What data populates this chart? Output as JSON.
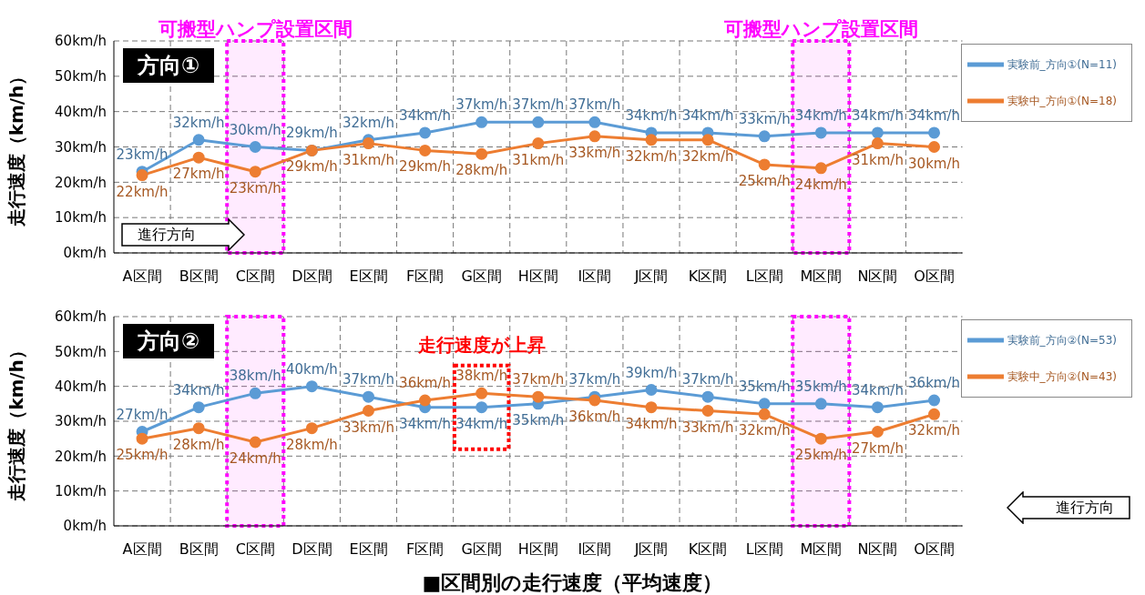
{
  "chart_data": [
    {
      "type": "line",
      "title": "方向①",
      "ylabel": "走行速度（km/h）",
      "categories": [
        "A区間",
        "B区間",
        "C区間",
        "D区間",
        "E区間",
        "F区間",
        "G区間",
        "H区間",
        "I区間",
        "J区間",
        "K区間",
        "L区間",
        "M区間",
        "N区間",
        "O区間"
      ],
      "series": [
        {
          "name": "実験前_方向①(N=11)",
          "color": "#5b9bd5",
          "values": [
            23,
            32,
            30,
            29,
            32,
            34,
            37,
            37,
            37,
            34,
            34,
            33,
            34,
            34,
            34
          ],
          "value_labels": [
            "23km/h",
            "32km/h",
            "30km/h",
            "29km/h",
            "32km/h",
            "34km/h",
            "37km/h",
            "37km/h",
            "37km/h",
            "34km/h",
            "34km/h",
            "33km/h",
            "34km/h",
            "34km/h",
            "34km/h"
          ]
        },
        {
          "name": "実験中_方向①(N=18)",
          "color": "#ed7d31",
          "values": [
            22,
            27,
            23,
            29,
            31,
            29,
            28,
            31,
            33,
            32,
            32,
            25,
            24,
            31,
            30
          ],
          "value_labels": [
            "22km/h",
            "27km/h",
            "23km/h",
            "29km/h",
            "31km/h",
            "29km/h",
            "28km/h",
            "31km/h",
            "33km/h",
            "32km/h",
            "32km/h",
            "25km/h",
            "24km/h",
            "31km/h",
            "30km/h"
          ]
        }
      ],
      "ylim": [
        0,
        60
      ],
      "yticks": [
        {
          "value": 0,
          "label": "0km/h"
        },
        {
          "value": 10,
          "label": "10km/h"
        },
        {
          "value": 20,
          "label": "20km/h"
        },
        {
          "value": 30,
          "label": "30km/h"
        },
        {
          "value": 40,
          "label": "40km/h"
        },
        {
          "value": 50,
          "label": "50km/h"
        },
        {
          "value": 60,
          "label": "60km/h"
        }
      ],
      "bands": [
        {
          "axis": "x",
          "from": "C区間",
          "to": "C区間",
          "label": "可搬型ハンプ設置区間",
          "color": "#ff00ff"
        },
        {
          "axis": "x",
          "from": "M区間",
          "to": "M区間",
          "label": "可搬型ハンプ設置区間",
          "color": "#ff00ff"
        }
      ],
      "annotations": [
        "進行方向"
      ],
      "grid": true,
      "legend": "top right",
      "marker": "circle",
      "line_style": "solid"
    },
    {
      "type": "line",
      "title": "方向②",
      "ylabel": "走行速度（km/h）",
      "categories": [
        "A区間",
        "B区間",
        "C区間",
        "D区間",
        "E区間",
        "F区間",
        "G区間",
        "H区間",
        "I区間",
        "J区間",
        "K区間",
        "L区間",
        "M区間",
        "N区間",
        "O区間"
      ],
      "series": [
        {
          "name": "実験前_方向②(N=53)",
          "color": "#5b9bd5",
          "values": [
            27,
            34,
            38,
            40,
            37,
            34,
            34,
            35,
            37,
            39,
            37,
            35,
            35,
            34,
            36
          ],
          "value_labels": [
            "27km/h",
            "34km/h",
            "38km/h",
            "40km/h",
            "37km/h",
            "34km/h",
            "34km/h",
            "35km/h",
            "37km/h",
            "39km/h",
            "37km/h",
            "35km/h",
            "35km/h",
            "34km/h",
            "36km/h"
          ]
        },
        {
          "name": "実験中_方向②(N=43)",
          "color": "#ed7d31",
          "values": [
            25,
            28,
            24,
            28,
            33,
            36,
            38,
            37,
            36,
            34,
            33,
            32,
            25,
            27,
            32
          ],
          "value_labels": [
            "25km/h",
            "28km/h",
            "24km/h",
            "28km/h",
            "33km/h",
            "36km/h",
            "38km/h",
            "37km/h",
            "36km/h",
            "34km/h",
            "33km/h",
            "32km/h",
            "25km/h",
            "27km/h",
            "32km/h"
          ]
        }
      ],
      "ylim": [
        0,
        60
      ],
      "yticks": [
        {
          "value": 0,
          "label": "0km/h"
        },
        {
          "value": 10,
          "label": "10km/h"
        },
        {
          "value": 20,
          "label": "20km/h"
        },
        {
          "value": 30,
          "label": "30km/h"
        },
        {
          "value": 40,
          "label": "40km/h"
        },
        {
          "value": 50,
          "label": "50km/h"
        },
        {
          "value": 60,
          "label": "60km/h"
        }
      ],
      "bands": [
        {
          "axis": "x",
          "from": "C区間",
          "to": "C区間",
          "color": "#ff00ff"
        },
        {
          "axis": "x",
          "from": "M区間",
          "to": "M区間",
          "color": "#ff00ff"
        }
      ],
      "annotations": [
        {
          "text": "走行速度が上昇",
          "x": "G区間",
          "y": 38
        },
        "進行方向",
        "■区間別の走行速度（平均速度）"
      ],
      "grid": true,
      "legend": "top right",
      "marker": "circle",
      "line_style": "solid"
    }
  ]
}
